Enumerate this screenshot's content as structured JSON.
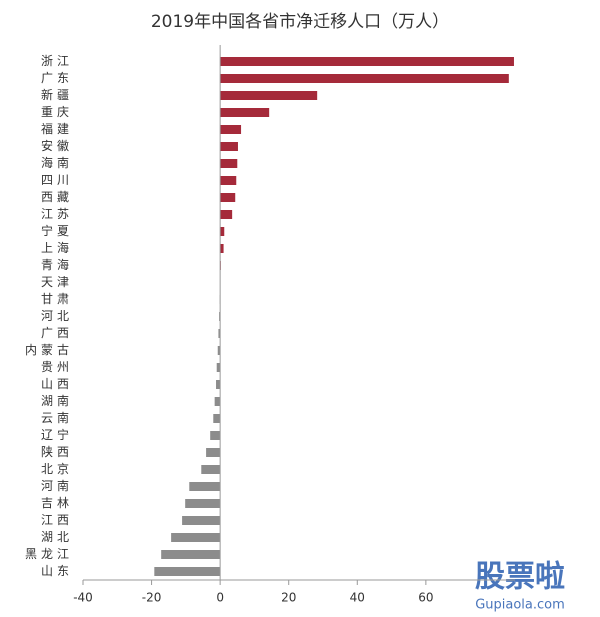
{
  "chart_data": {
    "type": "barh",
    "title": "2019年中国各省市净迁移人口（万人）",
    "categories": [
      "浙江",
      "广东",
      "新疆",
      "重庆",
      "福建",
      "安徽",
      "海南",
      "四川",
      "西藏",
      "江苏",
      "宁夏",
      "上海",
      "青海",
      "天津",
      "甘肃",
      "河北",
      "广西",
      "内蒙古",
      "贵州",
      "山西",
      "湖南",
      "云南",
      "辽宁",
      "陕西",
      "北京",
      "河南",
      "吉林",
      "江西",
      "湖北",
      "黑龙江",
      "山东"
    ],
    "values": [
      85.7,
      84.2,
      28.3,
      14.3,
      6.1,
      5.2,
      5.0,
      4.7,
      4.4,
      3.5,
      1.2,
      1.0,
      0.2,
      0.1,
      -0.1,
      -0.3,
      -0.5,
      -0.7,
      -1.0,
      -1.2,
      -1.6,
      -2.0,
      -2.9,
      -4.1,
      -5.5,
      -9.0,
      -10.2,
      -11.1,
      -14.3,
      -17.2,
      -19.2
    ],
    "positive_color": "#a52a3a",
    "negative_color": "#8c8c8c",
    "xlim": [
      -40,
      86
    ],
    "xticks": [
      -40,
      -20,
      0,
      20,
      40,
      60
    ],
    "grid": false
  },
  "watermark": {
    "brand": "股票啦",
    "site": "Gupiaola.com"
  }
}
